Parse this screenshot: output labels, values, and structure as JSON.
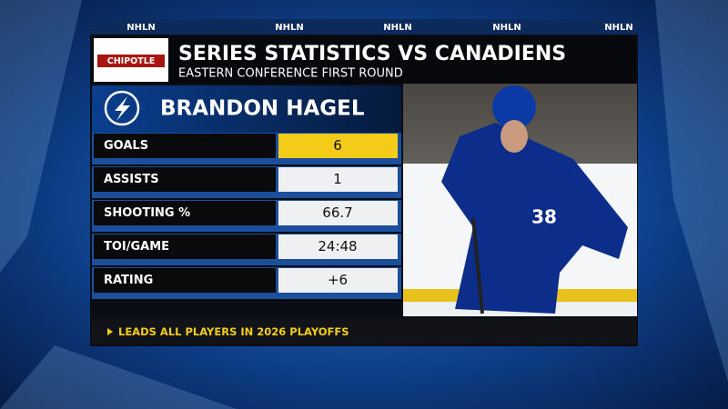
{
  "network": "NHLN",
  "sponsor": "CHIPOTLE",
  "header": {
    "title": "SERIES STATISTICS VS CANADIENS",
    "subtitle": "EASTERN CONFERENCE FIRST ROUND"
  },
  "player": {
    "name": "BRANDON HAGEL",
    "jersey_number": "38"
  },
  "stats": [
    {
      "label": "GOALS",
      "value": 6
    },
    {
      "label": "ASSISTS",
      "value": 1
    },
    {
      "label": "SHOOTING %",
      "value": 66.7
    },
    {
      "label": "TOI/GAME",
      "value": "24:48"
    },
    {
      "label": "RATING",
      "value": "+6"
    }
  ],
  "footer": "LEADS ALL PLAYERS IN 2026 PLAYOFFS"
}
